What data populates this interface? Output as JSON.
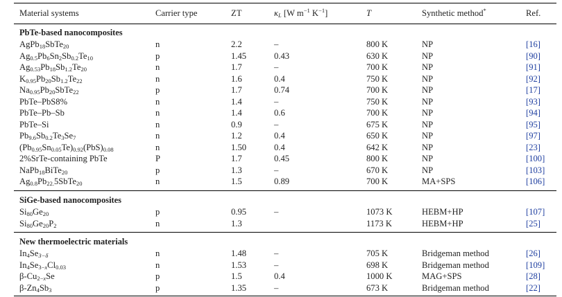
{
  "header": {
    "material": "Material systems",
    "carrier": "Carrier type",
    "zt": "ZT",
    "kappa_sym": "κ",
    "kappa_sub": "L",
    "kappa_unit_a": " [W m",
    "kappa_sup1": "−1",
    "kappa_unit_b": " K",
    "kappa_sup2": "−1",
    "kappa_unit_c": "]",
    "temp": "T",
    "method": "Synthetic method",
    "method_mark": "*",
    "ref": "Ref."
  },
  "sections": [
    {
      "title": "PbTe-based nanocomposites",
      "rows": [
        {
          "material": [
            [
              "AgPb",
              ""
            ],
            [
              "18",
              "sub"
            ],
            [
              "SbTe",
              ""
            ],
            [
              "20",
              "sub"
            ]
          ],
          "carrier": "n",
          "zt": "2.2",
          "kappa": "–",
          "temp": "800 K",
          "method": "NP",
          "ref": "[16]"
        },
        {
          "material": [
            [
              "Ag",
              ""
            ],
            [
              "0.5",
              "sub"
            ],
            [
              "Pb",
              ""
            ],
            [
              "6",
              "sub"
            ],
            [
              "Sn",
              ""
            ],
            [
              "2",
              "sub"
            ],
            [
              "Sb",
              ""
            ],
            [
              "0.2",
              "sub"
            ],
            [
              "Te",
              ""
            ],
            [
              "10",
              "sub"
            ]
          ],
          "carrier": "p",
          "zt": "1.45",
          "kappa": "0.43",
          "temp": "630 K",
          "method": "NP",
          "ref": "[90]"
        },
        {
          "material": [
            [
              "Ag",
              ""
            ],
            [
              "0.53",
              "sub"
            ],
            [
              "Pb",
              ""
            ],
            [
              "18",
              "sub"
            ],
            [
              "Sb",
              ""
            ],
            [
              "1.2",
              "sub"
            ],
            [
              "Te",
              ""
            ],
            [
              "20",
              "sub"
            ]
          ],
          "carrier": "n",
          "zt": "1.7",
          "kappa": "–",
          "temp": "700 K",
          "method": "NP",
          "ref": "[91]"
        },
        {
          "material": [
            [
              "K",
              ""
            ],
            [
              "0.95",
              "sub"
            ],
            [
              "Pb",
              ""
            ],
            [
              "20",
              "sub"
            ],
            [
              "Sb",
              ""
            ],
            [
              "1.2",
              "sub"
            ],
            [
              "Te",
              ""
            ],
            [
              "22",
              "sub"
            ]
          ],
          "carrier": "n",
          "zt": "1.6",
          "kappa": "0.4",
          "temp": "750 K",
          "method": "NP",
          "ref": "[92]"
        },
        {
          "material": [
            [
              "Na",
              ""
            ],
            [
              "0.95",
              "sub"
            ],
            [
              "Pb",
              ""
            ],
            [
              "20",
              "sub"
            ],
            [
              "SbTe",
              ""
            ],
            [
              "22",
              "sub"
            ]
          ],
          "carrier": "p",
          "zt": "1.7",
          "kappa": "0.74",
          "temp": "700 K",
          "method": "NP",
          "ref": "[17]"
        },
        {
          "material": [
            [
              "PbTe–PbS8%",
              ""
            ]
          ],
          "carrier": "n",
          "zt": "1.4",
          "kappa": "–",
          "temp": "750 K",
          "method": "NP",
          "ref": "[93]"
        },
        {
          "material": [
            [
              "PbTe–Pb–Sb",
              ""
            ]
          ],
          "carrier": "n",
          "zt": "1.4",
          "kappa": "0.6",
          "temp": "700 K",
          "method": "NP",
          "ref": "[94]"
        },
        {
          "material": [
            [
              "PbTe–Si",
              ""
            ]
          ],
          "carrier": "n",
          "zt": "0.9",
          "kappa": "–",
          "temp": "675 K",
          "method": "NP",
          "ref": "[95]"
        },
        {
          "material": [
            [
              "Pb",
              ""
            ],
            [
              "9.6",
              "sub"
            ],
            [
              "Sb",
              ""
            ],
            [
              "0.2",
              "sub"
            ],
            [
              "Te",
              ""
            ],
            [
              "3",
              "sub"
            ],
            [
              "Se",
              ""
            ],
            [
              "7",
              "sub"
            ]
          ],
          "carrier": "n",
          "zt": "1.2",
          "kappa": "0.4",
          "temp": "650 K",
          "method": "NP",
          "ref": "[97]"
        },
        {
          "material": [
            [
              "(Pb",
              ""
            ],
            [
              "0.95",
              "sub"
            ],
            [
              "Sn",
              ""
            ],
            [
              "0.05",
              "sub"
            ],
            [
              "Te)",
              ""
            ],
            [
              "0.92",
              "sub"
            ],
            [
              "(PbS)",
              ""
            ],
            [
              "0.08",
              "sub"
            ]
          ],
          "carrier": "n",
          "zt": "1.50",
          "kappa": "0.4",
          "temp": "642 K",
          "method": "NP",
          "ref": "[23]"
        },
        {
          "material": [
            [
              "2%SrTe-containing PbTe",
              ""
            ]
          ],
          "carrier": "P",
          "zt": "1.7",
          "kappa": "0.45",
          "temp": "800 K",
          "method": "NP",
          "ref": "[100]"
        },
        {
          "material": [
            [
              "NaPb",
              ""
            ],
            [
              "18",
              "sub"
            ],
            [
              "BiTe",
              ""
            ],
            [
              "20",
              "sub"
            ]
          ],
          "carrier": "p",
          "zt": "1.3",
          "kappa": "–",
          "temp": "670 K",
          "method": "NP",
          "ref": "[103]"
        },
        {
          "material": [
            [
              "Ag",
              ""
            ],
            [
              "0.8",
              "sub"
            ],
            [
              "Pb",
              ""
            ],
            [
              "22.",
              "sub"
            ],
            [
              "5SbTe",
              ""
            ],
            [
              "20",
              "sub"
            ]
          ],
          "carrier": "n",
          "zt": "1.5",
          "kappa": "0.89",
          "temp": "700 K",
          "method": "MA+SPS",
          "ref": "[106]"
        }
      ]
    },
    {
      "title": "SiGe-based nanocomposites",
      "rows": [
        {
          "material": [
            [
              "Si",
              ""
            ],
            [
              "80",
              "sub"
            ],
            [
              "Ge",
              ""
            ],
            [
              "20",
              "sub"
            ]
          ],
          "carrier": "p",
          "zt": "0.95",
          "kappa": "–",
          "temp": "1073 K",
          "method": "HEBM+HP",
          "ref": "[107]"
        },
        {
          "material": [
            [
              "Si",
              ""
            ],
            [
              "80",
              "sub"
            ],
            [
              "Ge",
              ""
            ],
            [
              "20",
              "sub"
            ],
            [
              "P",
              ""
            ],
            [
              "2",
              "sub"
            ]
          ],
          "carrier": "n",
          "zt": "1.3",
          "kappa": "",
          "temp": "1173 K",
          "method": "HEBM+HP",
          "ref": "[25]"
        }
      ]
    },
    {
      "title": "New thermoelectric materials",
      "rows": [
        {
          "material": [
            [
              "In",
              ""
            ],
            [
              "4",
              "sub"
            ],
            [
              "Se",
              ""
            ],
            [
              "3−δ",
              "sub-it"
            ]
          ],
          "carrier": "n",
          "zt": "1.48",
          "kappa": "–",
          "temp": "705 K",
          "method": "Bridgeman method",
          "ref": "[26]"
        },
        {
          "material": [
            [
              "In",
              ""
            ],
            [
              "4",
              "sub"
            ],
            [
              "Se",
              ""
            ],
            [
              "3−",
              "sub"
            ],
            [
              "x",
              "sub-it"
            ],
            [
              "Cl",
              ""
            ],
            [
              "0.03",
              "sub"
            ]
          ],
          "carrier": "n",
          "zt": "1.53",
          "kappa": "–",
          "temp": "698 K",
          "method": "Bridgeman method",
          "ref": "[109]"
        },
        {
          "material": [
            [
              "β-Cu",
              ""
            ],
            [
              "2−",
              "sub"
            ],
            [
              "x",
              "sub-it"
            ],
            [
              "Se",
              ""
            ]
          ],
          "carrier": "p",
          "zt": "1.5",
          "kappa": "0.4",
          "temp": "1000 K",
          "method": "MAG+SPS",
          "ref": "[28]"
        },
        {
          "material": [
            [
              "β-Zn",
              ""
            ],
            [
              "4",
              "sub"
            ],
            [
              "Sb",
              ""
            ],
            [
              "3",
              "sub"
            ]
          ],
          "carrier": "p",
          "zt": "1.35",
          "kappa": "–",
          "temp": "673 K",
          "method": "Bridgeman method",
          "ref": "[22]"
        }
      ]
    }
  ]
}
